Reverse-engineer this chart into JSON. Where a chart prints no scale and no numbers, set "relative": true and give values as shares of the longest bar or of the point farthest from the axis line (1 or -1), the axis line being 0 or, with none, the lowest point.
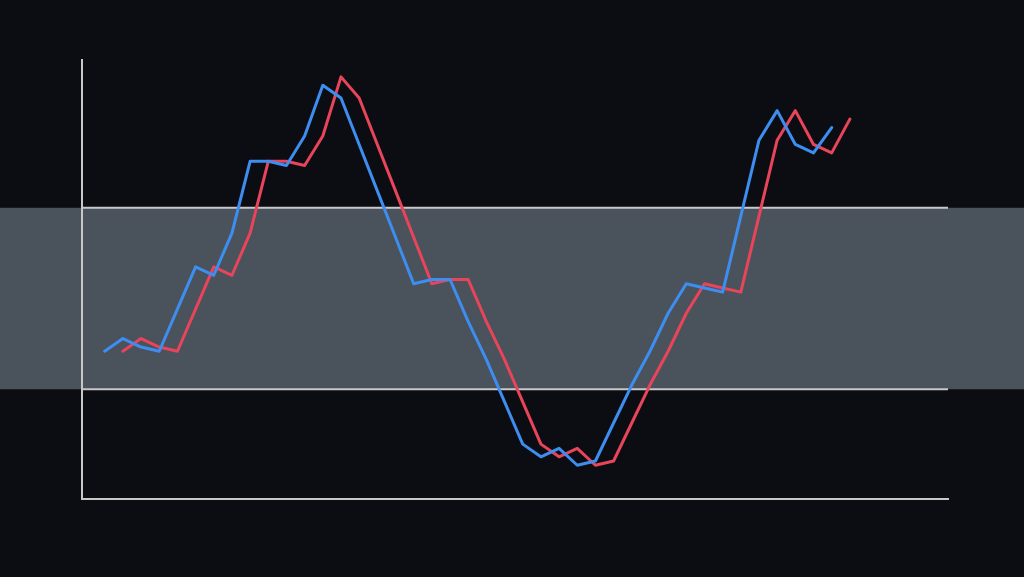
{
  "chart_data": {
    "type": "line",
    "relative": true,
    "categories": [
      null,
      null,
      null,
      null,
      null,
      null,
      null,
      null,
      null,
      null,
      null,
      null,
      null,
      null,
      null,
      null,
      null,
      null,
      null,
      null,
      null,
      null,
      null,
      null,
      null,
      null,
      null,
      null,
      null,
      null,
      null,
      null,
      null,
      null,
      null,
      null,
      null,
      null,
      null,
      null,
      null,
      null
    ],
    "series": [
      {
        "color": "#3d8ef0",
        "values": [
          0.35,
          0.38,
          0.36,
          0.35,
          0.45,
          0.55,
          0.53,
          0.63,
          0.8,
          0.8,
          0.79,
          0.86,
          0.98,
          0.95,
          0.84,
          0.73,
          0.62,
          0.51,
          0.52,
          0.52,
          0.42,
          0.33,
          0.23,
          0.13,
          0.1,
          0.12,
          0.08,
          0.09,
          0.18,
          0.27,
          0.35,
          0.44,
          0.51,
          0.5,
          0.49,
          0.67,
          0.85,
          0.92,
          0.84,
          0.82,
          0.88,
          null
        ]
      },
      {
        "color": "#e8455a",
        "values": [
          null,
          0.35,
          0.38,
          0.36,
          0.35,
          0.45,
          0.55,
          0.53,
          0.63,
          0.8,
          0.8,
          0.79,
          0.86,
          1.0,
          0.95,
          0.84,
          0.73,
          0.62,
          0.51,
          0.52,
          0.52,
          0.42,
          0.33,
          0.23,
          0.13,
          0.1,
          0.12,
          0.08,
          0.09,
          0.18,
          0.27,
          0.35,
          0.44,
          0.51,
          0.5,
          0.49,
          0.67,
          0.85,
          0.92,
          0.84,
          0.82,
          0.9
        ]
      }
    ],
    "bands": [
      {
        "axis": "y",
        "from": 0.26,
        "to": 0.69,
        "color": "#4a525c"
      }
    ],
    "ref_lines": [
      {
        "axis": "y",
        "value": 0.26,
        "color": "#c8c8c8"
      },
      {
        "axis": "y",
        "value": 0.69,
        "color": "#c8c8c8"
      }
    ],
    "legend": false,
    "marker": "none",
    "line_style": "solid"
  }
}
